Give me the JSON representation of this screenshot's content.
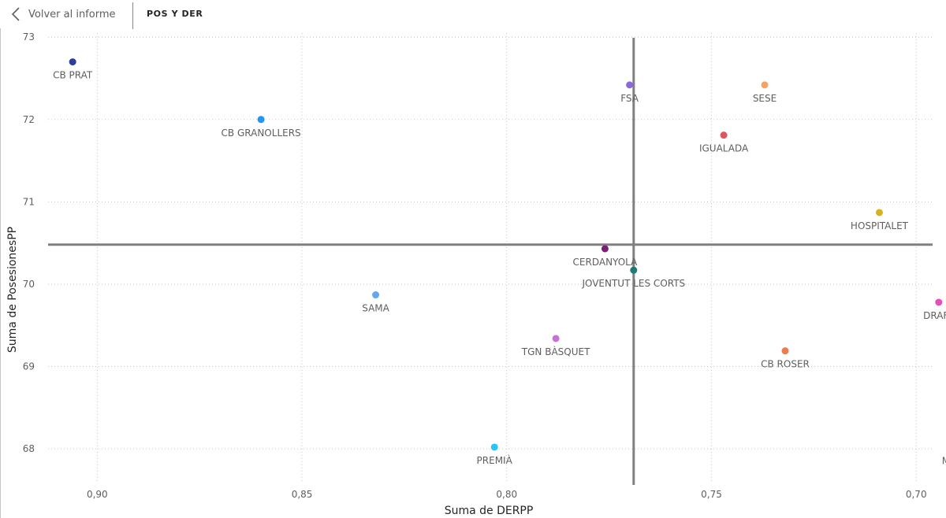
{
  "header": {
    "back_label": "Volver al informe",
    "page_title": "POS Y DER"
  },
  "icons": {
    "back": "chevron-left-icon"
  },
  "chart_data": {
    "type": "scatter",
    "title": "",
    "xlabel": "Suma de DERPP",
    "ylabel": "Suma de PosesionesPP",
    "x_reversed": true,
    "xlim": [
      0.912,
      0.696
    ],
    "ylim": [
      67.58,
      73.05
    ],
    "x_ticks": [
      {
        "value": 0.9,
        "label": "0,90"
      },
      {
        "value": 0.85,
        "label": "0,85"
      },
      {
        "value": 0.8,
        "label": "0,80"
      },
      {
        "value": 0.75,
        "label": "0,75"
      },
      {
        "value": 0.7,
        "label": "0,70"
      }
    ],
    "y_ticks": [
      {
        "value": 73,
        "label": "73"
      },
      {
        "value": 72,
        "label": "72"
      },
      {
        "value": 71,
        "label": "71"
      },
      {
        "value": 70,
        "label": "70"
      },
      {
        "value": 69,
        "label": "69"
      },
      {
        "value": 68,
        "label": "68"
      }
    ],
    "grid": true,
    "reference_lines": {
      "x": 0.769,
      "y": 70.48,
      "color": "#808080"
    },
    "points": [
      {
        "name": "CB PRAT",
        "x": 0.906,
        "y": 72.7,
        "color": "#2b3e9e",
        "label_pos": "below"
      },
      {
        "name": "CB GRANOLLERS",
        "x": 0.86,
        "y": 72.0,
        "color": "#2196f3",
        "label_pos": "below"
      },
      {
        "name": "FSA",
        "x": 0.77,
        "y": 72.42,
        "color": "#8a6ad8",
        "label_pos": "below"
      },
      {
        "name": "SESE",
        "x": 0.737,
        "y": 72.42,
        "color": "#f4a460",
        "label_pos": "below"
      },
      {
        "name": "IGUALADA",
        "x": 0.747,
        "y": 71.81,
        "color": "#e05560",
        "label_pos": "below"
      },
      {
        "name": "HOSPITALET",
        "x": 0.709,
        "y": 70.87,
        "color": "#d4b31e",
        "label_pos": "below"
      },
      {
        "name": "CERDANYOLA",
        "x": 0.776,
        "y": 70.43,
        "color": "#7b1e7a",
        "label_pos": "below"
      },
      {
        "name": "JOVENTUT LES CORTS",
        "x": 0.769,
        "y": 70.17,
        "color": "#1f7a7a",
        "label_pos": "below"
      },
      {
        "name": "SAMA",
        "x": 0.832,
        "y": 69.87,
        "color": "#64a6f0",
        "label_pos": "below"
      },
      {
        "name": "DRAFT",
        "x": 0.6945,
        "y": 69.78,
        "color": "#e64fb5",
        "label_pos": "below"
      },
      {
        "name": "TGN BÀSQUET",
        "x": 0.788,
        "y": 69.34,
        "color": "#c86fd8",
        "label_pos": "below"
      },
      {
        "name": "CB ROSER",
        "x": 0.732,
        "y": 69.19,
        "color": "#ee7b4a",
        "label_pos": "below"
      },
      {
        "name": "PREMIÀ",
        "x": 0.803,
        "y": 68.02,
        "color": "#29c5f6",
        "label_pos": "below"
      },
      {
        "name": "MANRESA",
        "x": 0.688,
        "y": 67.72,
        "color": "#34b24a",
        "label_pos": "above"
      }
    ]
  }
}
